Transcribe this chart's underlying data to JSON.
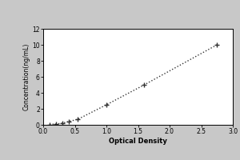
{
  "title": "",
  "xlabel": "Optical Density",
  "ylabel": "Concentration(ng/mL)",
  "x_data": [
    0.1,
    0.2,
    0.3,
    0.4,
    0.55,
    1.0,
    1.6,
    2.75
  ],
  "y_data": [
    0.05,
    0.1,
    0.2,
    0.4,
    0.7,
    2.5,
    5.0,
    10.0
  ],
  "xlim": [
    0,
    3
  ],
  "ylim": [
    0,
    12
  ],
  "xticks": [
    0,
    0.5,
    1.0,
    1.5,
    2.0,
    2.5,
    3.0
  ],
  "yticks": [
    0,
    2,
    4,
    6,
    8,
    10,
    12
  ],
  "line_color": "#333333",
  "marker_color": "#333333",
  "marker": "+",
  "outer_bg": "#c8c8c8",
  "inner_bg": "#ffffff",
  "figsize": [
    3.0,
    2.0
  ],
  "dpi": 100
}
